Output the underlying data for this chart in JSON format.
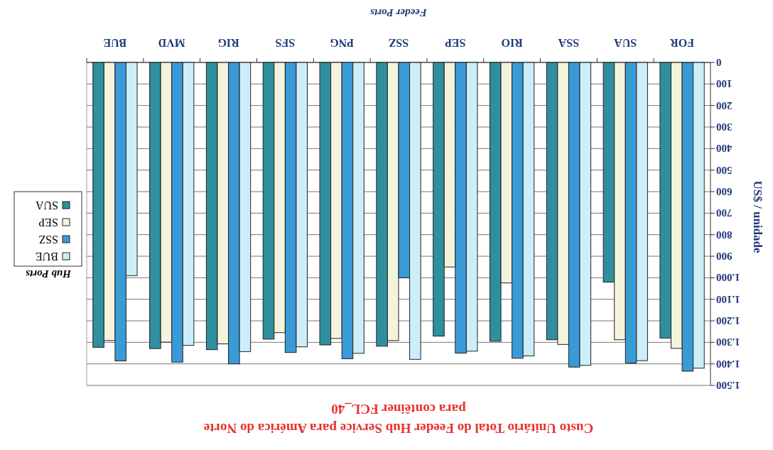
{
  "chart_data": {
    "type": "bar",
    "title": "Custo Unitário Total do Feeder Hub Service para América do Norte\npara contêiner FCL_40",
    "xlabel": "Feeder Ports",
    "ylabel": "US$ / unidade",
    "legend_title": "Hub Ports",
    "categories": [
      "BUE",
      "MVD",
      "RIG",
      "SFS",
      "PNG",
      "SSZ",
      "SEP",
      "RIO",
      "SSA",
      "SUA",
      "FOR"
    ],
    "series": [
      {
        "name": "SUA",
        "color": "#2f8f9f",
        "values": [
          1323,
          1329,
          1334,
          1285,
          1312,
          1318,
          1271,
          1295,
          1288,
          1020,
          1280
        ]
      },
      {
        "name": "SEP",
        "color": "#f4f4dc",
        "values": [
          1292,
          1299,
          1307,
          1255,
          1282,
          1292,
          950,
          1024,
          1310,
          1288,
          1328
        ]
      },
      {
        "name": "SSZ",
        "color": "#3a9ad6",
        "values": [
          1386,
          1392,
          1400,
          1347,
          1376,
          1000,
          1350,
          1374,
          1415,
          1396,
          1434
        ]
      },
      {
        "name": "BUE",
        "color": "#cdeef8",
        "values": [
          990,
          1314,
          1343,
          1321,
          1351,
          1379,
          1341,
          1363,
          1407,
          1385,
          1420
        ]
      }
    ],
    "ylim": [
      1500,
      0
    ],
    "yticks": [
      0,
      100,
      200,
      300,
      400,
      500,
      600,
      700,
      800,
      900,
      {
        "value": 1000,
        "label": "1.000"
      },
      {
        "value": 1100,
        "label": "1.100"
      },
      {
        "value": 1200,
        "label": "1.200"
      },
      {
        "value": 1300,
        "label": "1.300"
      },
      {
        "value": 1400,
        "label": "1.400"
      },
      {
        "value": 1500,
        "label": "1.500"
      }
    ],
    "grid": "y",
    "legend": "left"
  }
}
